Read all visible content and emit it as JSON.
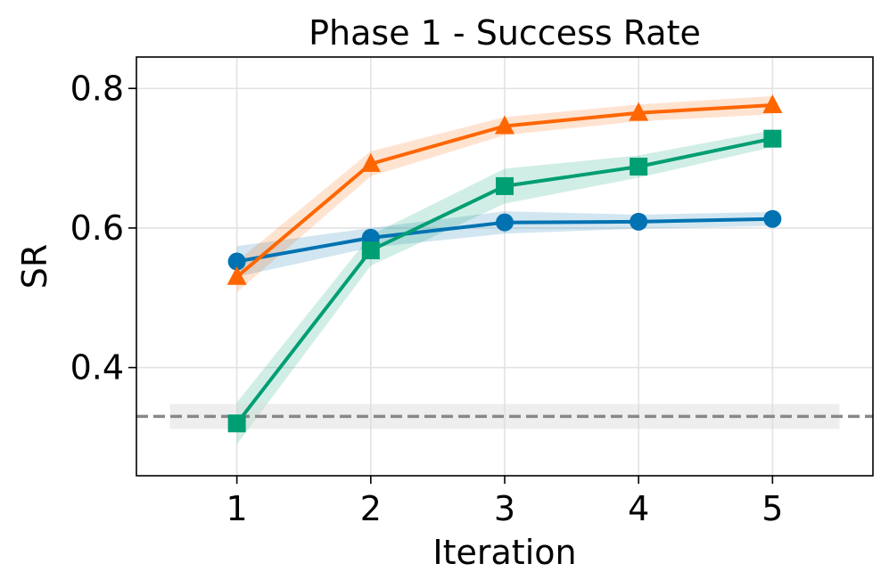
{
  "chart_data": {
    "type": "line",
    "title": "Phase 1 - Success Rate",
    "xlabel": "Iteration",
    "ylabel": "SR",
    "x": [
      1,
      2,
      3,
      4,
      5
    ],
    "xticks": [
      "1",
      "2",
      "3",
      "4",
      "5"
    ],
    "yticks": [
      "0.4",
      "0.6",
      "0.8"
    ],
    "xlim": [
      0.25,
      5.75
    ],
    "ylim": [
      0.245,
      0.845
    ],
    "grid": true,
    "series": [
      {
        "name": "blue",
        "color": "#0072B2",
        "marker": "circle",
        "values": [
          0.552,
          0.586,
          0.608,
          0.609,
          0.613
        ],
        "band": [
          0.022,
          0.014,
          0.016,
          0.01,
          0.01
        ]
      },
      {
        "name": "orange",
        "color": "#FF6600",
        "marker": "triangle",
        "values": [
          0.53,
          0.692,
          0.746,
          0.765,
          0.776
        ],
        "band": [
          0.022,
          0.018,
          0.013,
          0.012,
          0.013
        ]
      },
      {
        "name": "green",
        "color": "#009E73",
        "marker": "square",
        "values": [
          0.32,
          0.568,
          0.66,
          0.688,
          0.728
        ],
        "band": [
          0.03,
          0.022,
          0.025,
          0.016,
          0.012
        ]
      }
    ],
    "baseline": {
      "value": 0.33,
      "band": 0.018,
      "color": "#888888",
      "style": "dashed"
    }
  }
}
